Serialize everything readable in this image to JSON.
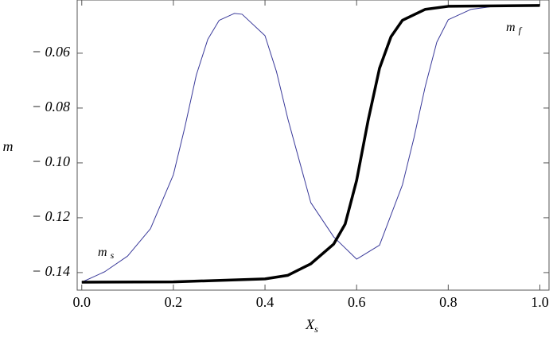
{
  "chart_data": {
    "type": "line",
    "xlabel": {
      "text": "X",
      "subscript": "s"
    },
    "ylabel": "m",
    "xlim": [
      -0.01,
      1.02
    ],
    "ylim": [
      -0.1464,
      -0.0406
    ],
    "xticks": [
      {
        "value": 0,
        "label": "0.0"
      },
      {
        "value": 0.2,
        "label": "0.2"
      },
      {
        "value": 0.4,
        "label": "0.4"
      },
      {
        "value": 0.6,
        "label": "0.6"
      },
      {
        "value": 0.8,
        "label": "0.8"
      },
      {
        "value": 1,
        "label": "1.0"
      }
    ],
    "yticks": [
      {
        "value": -0.06,
        "label": "− 0.06"
      },
      {
        "value": -0.08,
        "label": "− 0.08"
      },
      {
        "value": -0.1,
        "label": "− 0.10"
      },
      {
        "value": -0.12,
        "label": "− 0.12"
      },
      {
        "value": -0.14,
        "label": "− 0.14"
      }
    ],
    "series": [
      {
        "color": "#3a3a9a",
        "width": 1,
        "x": [
          0,
          0.05,
          0.1,
          0.15,
          0.2,
          0.225,
          0.25,
          0.275,
          0.3,
          0.333,
          0.35,
          0.4,
          0.425,
          0.45,
          0.5,
          0.55,
          0.6,
          0.65,
          0.7,
          0.725,
          0.75,
          0.775,
          0.8,
          0.85,
          0.9,
          1
        ],
        "values": [
          -0.1435,
          -0.1397,
          -0.134,
          -0.124,
          -0.1043,
          -0.087,
          -0.068,
          -0.055,
          -0.048,
          -0.0455,
          -0.0458,
          -0.0536,
          -0.0667,
          -0.084,
          -0.1145,
          -0.127,
          -0.1351,
          -0.13,
          -0.108,
          -0.091,
          -0.072,
          -0.056,
          -0.0478,
          -0.044,
          -0.0429,
          -0.0426
        ]
      },
      {
        "color": "#000000",
        "width": 3.5,
        "x": [
          0,
          0.2,
          0.4,
          0.45,
          0.5,
          0.55,
          0.575,
          0.6,
          0.625,
          0.65,
          0.675,
          0.7,
          0.75,
          0.8,
          1
        ],
        "values": [
          -0.1435,
          -0.1434,
          -0.1423,
          -0.141,
          -0.1368,
          -0.1296,
          -0.1223,
          -0.1064,
          -0.0846,
          -0.0655,
          -0.054,
          -0.048,
          -0.044,
          -0.0429,
          -0.0426
        ]
      }
    ],
    "annotations": [
      {
        "text": "m",
        "subscript": "s"
      },
      {
        "text": "m",
        "subscript": "f"
      }
    ]
  }
}
